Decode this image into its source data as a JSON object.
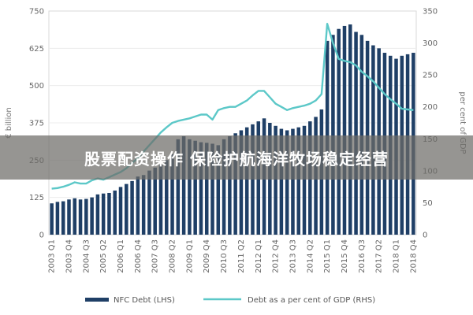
{
  "banner": {
    "text": "股票配资操作 保险护航海洋牧场稳定经营"
  },
  "chart_data": {
    "type": "bar+line",
    "title": "",
    "y_left": {
      "label": "€ billion",
      "min": 0,
      "max": 750,
      "ticks": [
        0,
        125,
        250,
        375,
        500,
        625,
        750
      ]
    },
    "y_right": {
      "label": "per cent of GDP",
      "min": 0,
      "max": 350,
      "ticks": [
        0,
        50,
        100,
        150,
        200,
        250,
        300,
        350
      ]
    },
    "x_tick_labels": [
      "2003 Q1",
      "2003 Q4",
      "2004 Q3",
      "2005 Q2",
      "2006 Q1",
      "2006 Q4",
      "2007 Q3",
      "2008 Q2",
      "2009 Q1",
      "2009 Q4",
      "2010 Q3",
      "2011 Q2",
      "2012 Q1",
      "2012 Q4",
      "2013 Q3",
      "2014 Q2",
      "2015 Q1",
      "2015 Q4",
      "2016 Q3",
      "2017 Q2",
      "2018 Q1",
      "2018 Q4"
    ],
    "quarters": [
      "2003 Q1",
      "2003 Q2",
      "2003 Q3",
      "2003 Q4",
      "2004 Q1",
      "2004 Q2",
      "2004 Q3",
      "2004 Q4",
      "2005 Q1",
      "2005 Q2",
      "2005 Q3",
      "2005 Q4",
      "2006 Q1",
      "2006 Q2",
      "2006 Q3",
      "2006 Q4",
      "2007 Q1",
      "2007 Q2",
      "2007 Q3",
      "2007 Q4",
      "2008 Q1",
      "2008 Q2",
      "2008 Q3",
      "2008 Q4",
      "2009 Q1",
      "2009 Q2",
      "2009 Q3",
      "2009 Q4",
      "2010 Q1",
      "2010 Q2",
      "2010 Q3",
      "2010 Q4",
      "2011 Q1",
      "2011 Q2",
      "2011 Q3",
      "2011 Q4",
      "2012 Q1",
      "2012 Q2",
      "2012 Q3",
      "2012 Q4",
      "2013 Q1",
      "2013 Q2",
      "2013 Q3",
      "2013 Q4",
      "2014 Q1",
      "2014 Q2",
      "2014 Q3",
      "2014 Q4",
      "2015 Q1",
      "2015 Q2",
      "2015 Q3",
      "2015 Q4",
      "2016 Q1",
      "2016 Q2",
      "2016 Q3",
      "2016 Q4",
      "2017 Q1",
      "2017 Q2",
      "2017 Q3",
      "2017 Q4",
      "2018 Q1",
      "2018 Q2",
      "2018 Q3",
      "2018 Q4"
    ],
    "series": [
      {
        "name": "NFC Debt (LHS)",
        "type": "bar",
        "axis": "left",
        "color": "#1f3f66",
        "values": [
          105,
          110,
          112,
          118,
          122,
          118,
          120,
          125,
          135,
          138,
          140,
          148,
          160,
          170,
          180,
          195,
          200,
          215,
          225,
          235,
          250,
          270,
          320,
          330,
          320,
          315,
          310,
          308,
          305,
          300,
          320,
          330,
          340,
          350,
          360,
          370,
          380,
          390,
          375,
          365,
          355,
          350,
          355,
          360,
          365,
          380,
          395,
          420,
          650,
          670,
          690,
          700,
          705,
          680,
          670,
          650,
          635,
          625,
          610,
          600,
          590,
          600,
          605,
          610
        ]
      },
      {
        "name": "Debt as a per cent of GDP (RHS)",
        "type": "line",
        "axis": "right",
        "color": "#5cc8c8",
        "values": [
          72,
          73,
          75,
          78,
          82,
          80,
          80,
          85,
          88,
          86,
          90,
          94,
          98,
          104,
          112,
          120,
          130,
          140,
          150,
          160,
          168,
          175,
          178,
          180,
          182,
          185,
          188,
          188,
          180,
          195,
          198,
          200,
          200,
          205,
          210,
          218,
          225,
          225,
          215,
          205,
          200,
          195,
          198,
          200,
          202,
          205,
          210,
          220,
          330,
          300,
          275,
          272,
          270,
          265,
          255,
          248,
          240,
          230,
          220,
          212,
          205,
          197,
          196,
          195
        ]
      }
    ],
    "legend_position": "bottom"
  }
}
